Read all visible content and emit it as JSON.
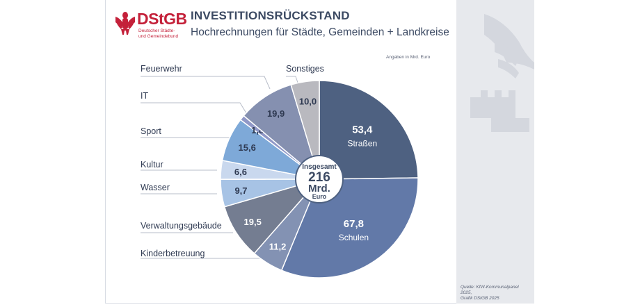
{
  "header": {
    "logo_text": "DStGB",
    "logo_sub_line1": "Deutscher Städte-",
    "logo_sub_line2": "und Gemeindebund",
    "title": "INVESTITIONSRÜCKSTAND",
    "subtitle": "Hochrechnungen für Städte, Gemeinden + Landkreise",
    "unit_note": "Angaben in Mrd. Euro"
  },
  "footer": {
    "source_line1": "Quelle: KfW-Kommunalpanel 2025,",
    "source_line2": "Grafik DStGB 2025"
  },
  "colors": {
    "brand": "#c4213a",
    "title": "#3c4a63",
    "side_panel": "#e7e9ed"
  },
  "chart_data": {
    "type": "pie",
    "title": "INVESTITIONSRÜCKSTAND",
    "subtitle": "Hochrechnungen für Städte, Gemeinden + Landkreise",
    "unit": "Mrd. Euro",
    "center_label": {
      "line1": "Insgesamt",
      "value": "216",
      "line3": "Mrd.",
      "line4": "Euro"
    },
    "slices": [
      {
        "label": "Straßen",
        "value": 53.4,
        "display": "53,4",
        "color": "#4e6181",
        "text_color": "#ffffff",
        "inner_label": true
      },
      {
        "label": "Schulen",
        "value": 67.8,
        "display": "67,8",
        "color": "#6279a8",
        "text_color": "#ffffff",
        "inner_label": true
      },
      {
        "label": "Kinderbetreuung",
        "value": 11.2,
        "display": "11,2",
        "color": "#8392b3",
        "text_color": "#ffffff"
      },
      {
        "label": "Verwaltungsgebäude",
        "value": 19.5,
        "display": "19,5",
        "color": "#747d91",
        "text_color": "#ffffff"
      },
      {
        "label": "Wasser",
        "value": 9.7,
        "display": "9,7",
        "color": "#a7c3e5",
        "text_color": "#2f3a52"
      },
      {
        "label": "Kultur",
        "value": 6.6,
        "display": "6,6",
        "color": "#c9d8ee",
        "text_color": "#2f3a52"
      },
      {
        "label": "Sport",
        "value": 15.6,
        "display": "15,6",
        "color": "#7ea9d8",
        "text_color": "#2f3a52"
      },
      {
        "label": "IT",
        "value": 1.8,
        "display": "1,8",
        "color": "#9098c7",
        "text_color": "#2f3a52"
      },
      {
        "label": "Feuerwehr",
        "value": 19.9,
        "display": "19,9",
        "color": "#8590b0",
        "text_color": "#2f3a52"
      },
      {
        "label": "Sonstiges",
        "value": 10.0,
        "display": "10,0",
        "color": "#b9b9bf",
        "text_color": "#2f3a52"
      }
    ]
  }
}
